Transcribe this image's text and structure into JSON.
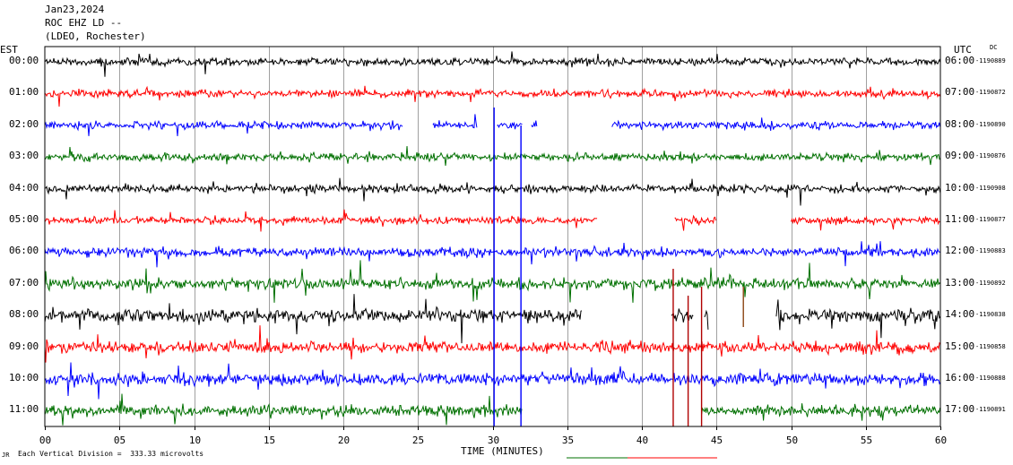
{
  "header": {
    "date": "Jan23,2024",
    "station": "ROC EHZ LD --",
    "network": "(LDEO, Rochester)"
  },
  "left_axis_label": "EST",
  "right_axis_label": "UTC",
  "dc_label": "DC",
  "footer": {
    "scale_note": "Each Vertical Division =  333.33 microvolts",
    "corner_mark": "JR"
  },
  "colors": {
    "c0": "#000000",
    "c1": "#ff0000",
    "c2": "#0000ff",
    "c3": "#007000"
  },
  "chart_data": {
    "type": "line",
    "title": "",
    "xlabel": "TIME (MINUTES)",
    "xlim": [
      0,
      60
    ],
    "x_ticks": [
      "00",
      "05",
      "10",
      "15",
      "20",
      "25",
      "30",
      "35",
      "40",
      "45",
      "50",
      "55",
      "60"
    ],
    "traces": [
      {
        "est": "00:00",
        "utc": "06:00",
        "dc": "-1190889",
        "color": "c0",
        "noise": 0.55,
        "segments": [
          [
            0,
            60
          ]
        ]
      },
      {
        "est": "01:00",
        "utc": "07:00",
        "dc": "-1190872",
        "color": "c1",
        "noise": 0.55,
        "segments": [
          [
            0,
            60
          ]
        ]
      },
      {
        "est": "02:00",
        "utc": "08:00",
        "dc": "-1190890",
        "color": "c2",
        "noise": 0.55,
        "segments": [
          [
            0,
            24
          ],
          [
            26,
            29
          ],
          [
            30.3,
            32
          ],
          [
            32.6,
            33
          ],
          [
            38,
            60
          ]
        ]
      },
      {
        "est": "03:00",
        "utc": "09:00",
        "dc": "-1190876",
        "color": "c3",
        "noise": 0.6,
        "segments": [
          [
            0,
            60
          ]
        ]
      },
      {
        "est": "04:00",
        "utc": "10:00",
        "dc": "-1190908",
        "color": "c0",
        "noise": 0.6,
        "segments": [
          [
            0,
            60
          ]
        ]
      },
      {
        "est": "05:00",
        "utc": "11:00",
        "dc": "-1190877",
        "color": "c1",
        "noise": 0.55,
        "segments": [
          [
            0,
            37
          ],
          [
            42.2,
            45
          ],
          [
            50,
            60
          ]
        ]
      },
      {
        "est": "06:00",
        "utc": "12:00",
        "dc": "-1190883",
        "color": "c2",
        "noise": 0.7,
        "segments": [
          [
            0,
            60
          ]
        ]
      },
      {
        "est": "07:00",
        "utc": "13:00",
        "dc": "-1190892",
        "color": "c3",
        "noise": 0.85,
        "segments": [
          [
            0,
            60
          ]
        ]
      },
      {
        "est": "08:00",
        "utc": "14:00",
        "dc": "-1190838",
        "color": "c0",
        "noise": 1.0,
        "segments": [
          [
            0,
            36
          ],
          [
            42,
            43.5
          ],
          [
            44.2,
            44.5
          ],
          [
            49,
            60
          ]
        ]
      },
      {
        "est": "09:00",
        "utc": "15:00",
        "dc": "-1190858",
        "color": "c1",
        "noise": 0.9,
        "segments": [
          [
            0,
            60
          ]
        ]
      },
      {
        "est": "10:00",
        "utc": "16:00",
        "dc": "-1190888",
        "color": "c2",
        "noise": 0.95,
        "segments": [
          [
            0,
            60
          ]
        ]
      },
      {
        "est": "11:00",
        "utc": "17:00",
        "dc": "-1190891",
        "color": "c3",
        "noise": 0.85,
        "segments": [
          [
            0,
            32
          ],
          [
            44,
            60
          ]
        ]
      }
    ]
  }
}
